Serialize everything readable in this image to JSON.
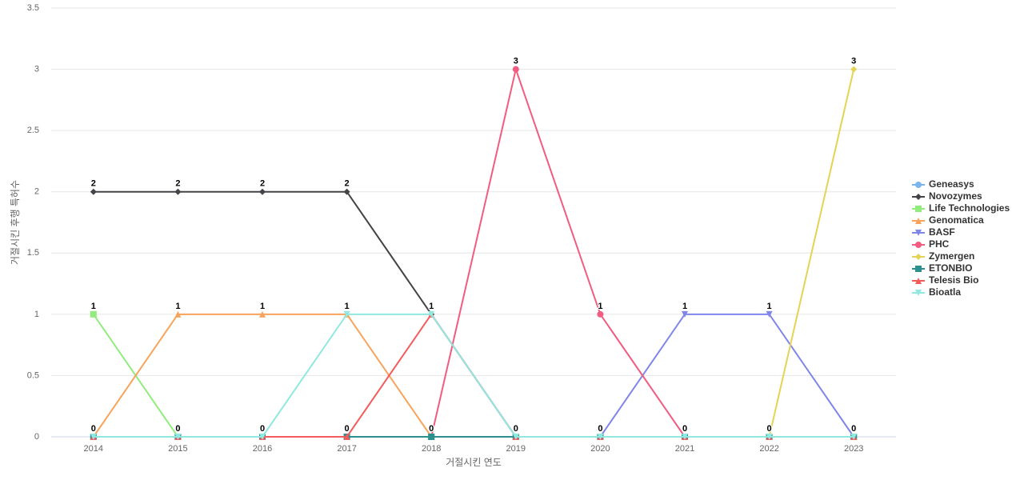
{
  "chart_data": {
    "type": "line",
    "x_label": "거절시킨 연도",
    "y_label": "거절시킨 후행 특허수",
    "categories": [
      "2014",
      "2015",
      "2016",
      "2017",
      "2018",
      "2019",
      "2020",
      "2021",
      "2022",
      "2023"
    ],
    "ylim": [
      0,
      3.5
    ],
    "yticks": [
      0,
      0.5,
      1,
      1.5,
      2,
      2.5,
      3,
      3.5
    ],
    "grid": true,
    "legend": "right",
    "series": [
      {
        "name": "Geneasys",
        "color": "#7cb5ec",
        "marker": "circle",
        "values": [
          0,
          0,
          0,
          0,
          0,
          0,
          0,
          0,
          0,
          0
        ]
      },
      {
        "name": "Novozymes",
        "color": "#434348",
        "marker": "diamond",
        "values": [
          2,
          2,
          2,
          2,
          1,
          0,
          0,
          0,
          0,
          0
        ]
      },
      {
        "name": "Life Technologies",
        "color": "#90ed7d",
        "marker": "square",
        "values": [
          1,
          0,
          0,
          0,
          0,
          0,
          0,
          0,
          0,
          0
        ]
      },
      {
        "name": "Genomatica",
        "color": "#f7a35c",
        "marker": "triangle",
        "values": [
          0,
          1,
          1,
          1,
          0,
          0,
          0,
          0,
          0,
          0
        ]
      },
      {
        "name": "BASF",
        "color": "#8085e9",
        "marker": "triangle-down",
        "values": [
          0,
          0,
          0,
          0,
          0,
          0,
          0,
          1,
          1,
          0
        ]
      },
      {
        "name": "PHC",
        "color": "#f15c80",
        "marker": "circle",
        "values": [
          0,
          0,
          0,
          0,
          0,
          3,
          1,
          0,
          0,
          0
        ]
      },
      {
        "name": "Zymergen",
        "color": "#e4d354",
        "marker": "diamond",
        "values": [
          0,
          0,
          0,
          0,
          0,
          0,
          0,
          0,
          0,
          3
        ]
      },
      {
        "name": "ETONBIO",
        "color": "#2b908f",
        "marker": "square",
        "values": [
          0,
          0,
          0,
          0,
          0,
          0,
          0,
          0,
          0,
          0
        ]
      },
      {
        "name": "Telesis Bio",
        "color": "#f45b5b",
        "marker": "triangle",
        "values": [
          0,
          0,
          0,
          0,
          1,
          0,
          0,
          0,
          0,
          0
        ]
      },
      {
        "name": "Bioatla",
        "color": "#91e8e1",
        "marker": "triangle-down",
        "values": [
          0,
          0,
          0,
          1,
          1,
          0,
          0,
          0,
          0,
          0
        ]
      }
    ]
  }
}
